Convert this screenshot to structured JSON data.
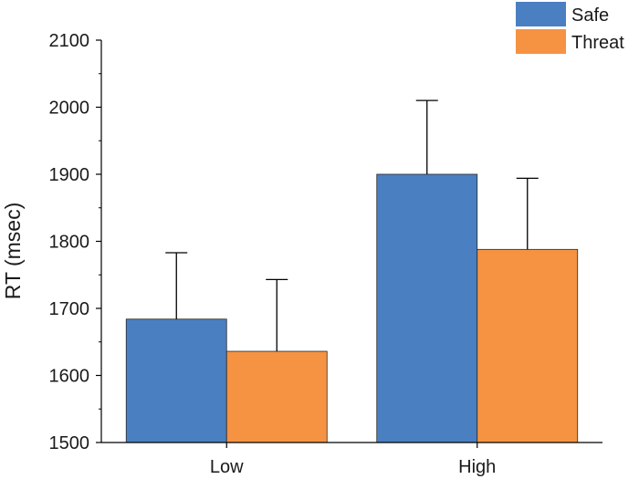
{
  "chart_data": {
    "type": "bar",
    "categories": [
      "Low",
      "High"
    ],
    "series": [
      {
        "name": "Safe",
        "color": "#4A7FC1",
        "values": [
          1684,
          1900
        ],
        "error_upper": [
          1783,
          2010
        ]
      },
      {
        "name": "Threat",
        "color": "#F59343",
        "values": [
          1636,
          1788
        ],
        "error_upper": [
          1743,
          1894
        ]
      }
    ],
    "title": "",
    "xlabel": "",
    "ylabel": "RT (msec)",
    "ylim": [
      1500,
      2100
    ],
    "yticks": [
      1500,
      1600,
      1700,
      1800,
      1900,
      2000,
      2100
    ],
    "grid": false,
    "legend_position": "top-right",
    "error_bars": "upper"
  }
}
